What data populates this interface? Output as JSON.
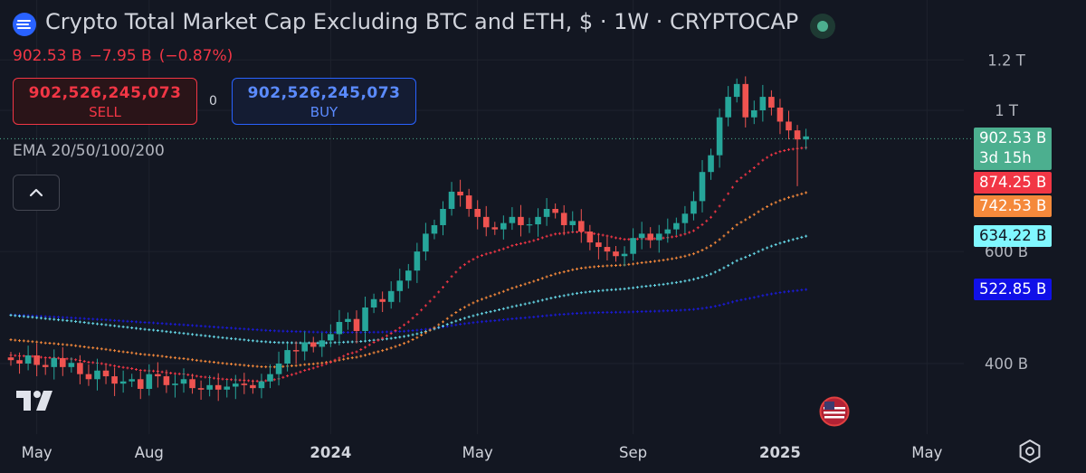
{
  "header": {
    "title": "Crypto Total Market Cap Excluding BTC and ETH, $ · 1W · CRYPTOCAP",
    "last_value": "902.53 B",
    "change": "−7.95 B",
    "change_pct": "(−0.87%)"
  },
  "trade": {
    "sell_value": "902,526,245,073",
    "sell_label": "SELL",
    "buy_value": "902,526,245,073",
    "buy_label": "BUY",
    "spread": "0"
  },
  "indicator_label": "EMA 20/50/100/200",
  "icons": [
    "cryptocap-logo-icon",
    "live-status-icon",
    "chevron-up-icon",
    "tradingview-logo-icon",
    "us-flag-icon",
    "settings-icon"
  ],
  "colors": {
    "background": "#131722",
    "up": "#26a69a",
    "down": "#ef5350",
    "ema20": "#f23645",
    "ema50": "#f5893b",
    "ema100": "#66d9e8",
    "ema200": "#1a1ad6"
  },
  "price_tags": [
    {
      "id": "last",
      "text": "902.53 B",
      "sub": "3d 15h",
      "color": "#4caf8f",
      "value": 902.53
    },
    {
      "id": "ema20",
      "text": "874.25 B",
      "color": "#f23645",
      "value": 874.25
    },
    {
      "id": "ema50",
      "text": "742.53 B",
      "color": "#f5893b",
      "value": 742.53
    },
    {
      "id": "ema100",
      "text": "634.22 B",
      "color": "#80f7ff",
      "value": 634.22
    },
    {
      "id": "ema200",
      "text": "522.85 B",
      "color": "#1010e8",
      "value": 522.85
    }
  ],
  "chart_data": {
    "type": "candlestick",
    "title": "Crypto Total Market Cap Excluding BTC and ETH, $ · 1W · CRYPTOCAP",
    "y_scale": "log",
    "y_ticks": [
      {
        "label": "1.2 T",
        "value": 1200
      },
      {
        "label": "1 T",
        "value": 1000
      },
      {
        "label": "600 B",
        "value": 600
      },
      {
        "label": "400 B",
        "value": 400
      }
    ],
    "x_ticks": [
      {
        "label": "May",
        "week": 3,
        "bold": false
      },
      {
        "label": "Aug",
        "week": 16,
        "bold": false
      },
      {
        "label": "2024",
        "week": 37,
        "bold": true
      },
      {
        "label": "May",
        "week": 54,
        "bold": false
      },
      {
        "label": "Sep",
        "week": 72,
        "bold": false
      },
      {
        "label": "2025",
        "week": 89,
        "bold": true
      },
      {
        "label": "May",
        "week": 106,
        "bold": false
      }
    ],
    "weekly_close_B": [
      405,
      400,
      412,
      398,
      395,
      408,
      395,
      401,
      385,
      378,
      390,
      382,
      372,
      375,
      378,
      365,
      385,
      382,
      370,
      372,
      378,
      366,
      364,
      370,
      364,
      368,
      372,
      370,
      366,
      375,
      385,
      400,
      420,
      418,
      432,
      425,
      435,
      445,
      465,
      470,
      450,
      490,
      505,
      500,
      520,
      540,
      560,
      600,
      640,
      660,
      700,
      745,
      735,
      700,
      680,
      655,
      650,
      665,
      680,
      660,
      662,
      680,
      700,
      690,
      660,
      670,
      645,
      620,
      610,
      600,
      590,
      595,
      630,
      640,
      625,
      640,
      650,
      665,
      688,
      720,
      800,
      850,
      975,
      1050,
      1100,
      975,
      1000,
      1050,
      1010,
      960,
      930,
      900,
      910
    ],
    "ema_values_B_latest": {
      "ema20": 874.25,
      "ema50": 742.53,
      "ema100": 634.22,
      "ema200": 522.85
    },
    "last_close_B": 902.53,
    "bar_countdown": "3d 15h"
  }
}
